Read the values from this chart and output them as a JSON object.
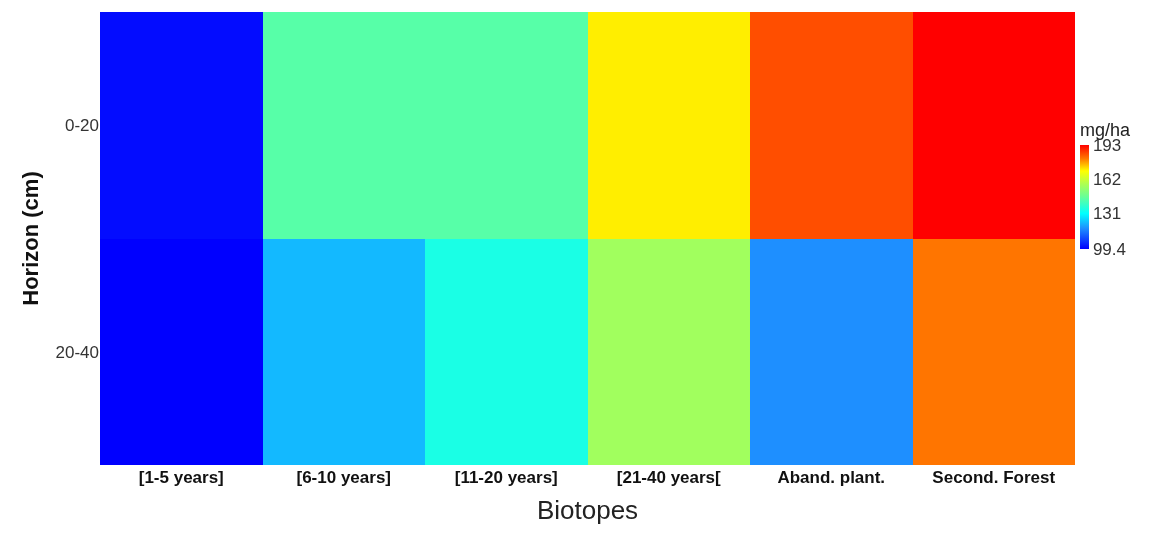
{
  "chart_data": {
    "type": "heatmap",
    "xlabel": "Biotopes",
    "ylabel": "Horizon (cm)",
    "clabel": "mg/ha",
    "categories": [
      "[1-5 years]",
      "[6-10 years]",
      "[11-20 years]",
      "[21-40 years[",
      "Aband. plant.",
      "Second. Forest"
    ],
    "y_categories": [
      "0-20",
      "20-40"
    ],
    "cells": [
      [
        101,
        144,
        144,
        171,
        185,
        193
      ],
      [
        99.4,
        123,
        135,
        156,
        118,
        181
      ]
    ],
    "clim": [
      99.4,
      193
    ],
    "cticks": [
      99.4,
      131,
      162,
      193
    ]
  }
}
